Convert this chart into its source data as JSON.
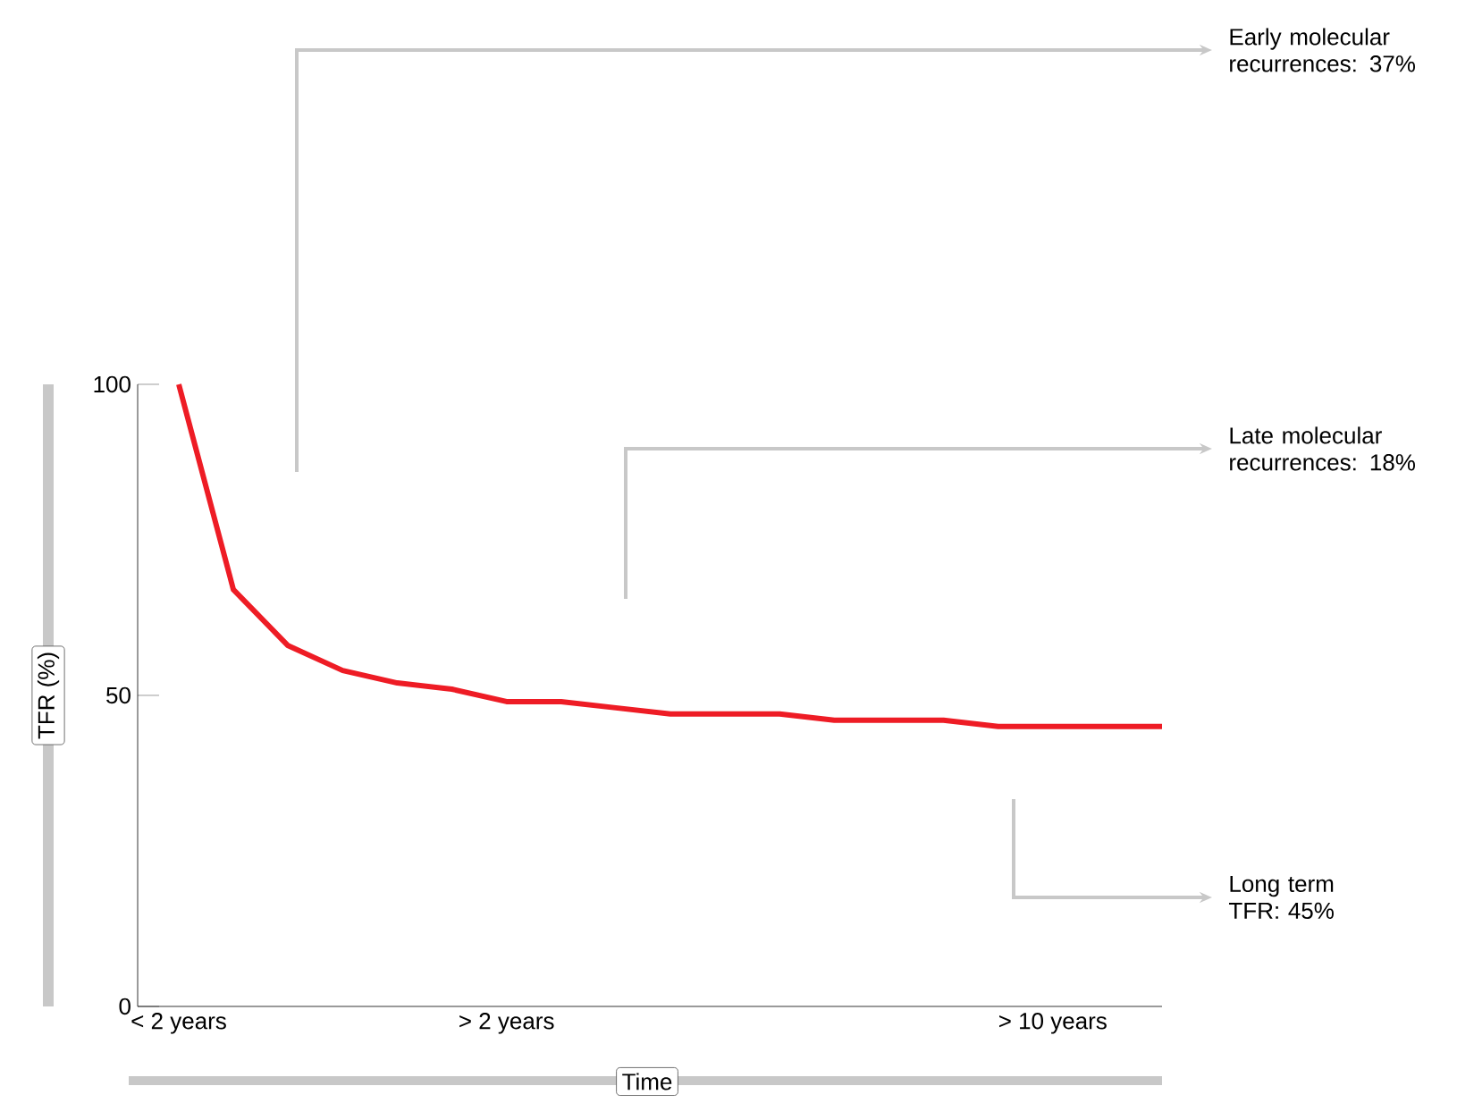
{
  "chart_data": {
    "type": "line",
    "xlabel": "Time",
    "ylabel": "TFR (%)",
    "categories": [
      "< 2 years",
      null,
      null,
      null,
      null,
      null,
      "> 2 years",
      null,
      null,
      null,
      null,
      null,
      null,
      null,
      null,
      null,
      "> 10 years",
      null,
      null
    ],
    "values": [
      100,
      67,
      58,
      54,
      52,
      51,
      49,
      49,
      48,
      47,
      47,
      47,
      46,
      46,
      46,
      45,
      45,
      45,
      45
    ],
    "color": "#ee1c25",
    "ylim": [
      0,
      100
    ],
    "yticks": [
      0,
      50,
      100
    ],
    "annotations": [
      "Early molecular recurrences: 37%",
      "Late molecular recurrences: 18%",
      "Long term TFR: 45%"
    ]
  }
}
